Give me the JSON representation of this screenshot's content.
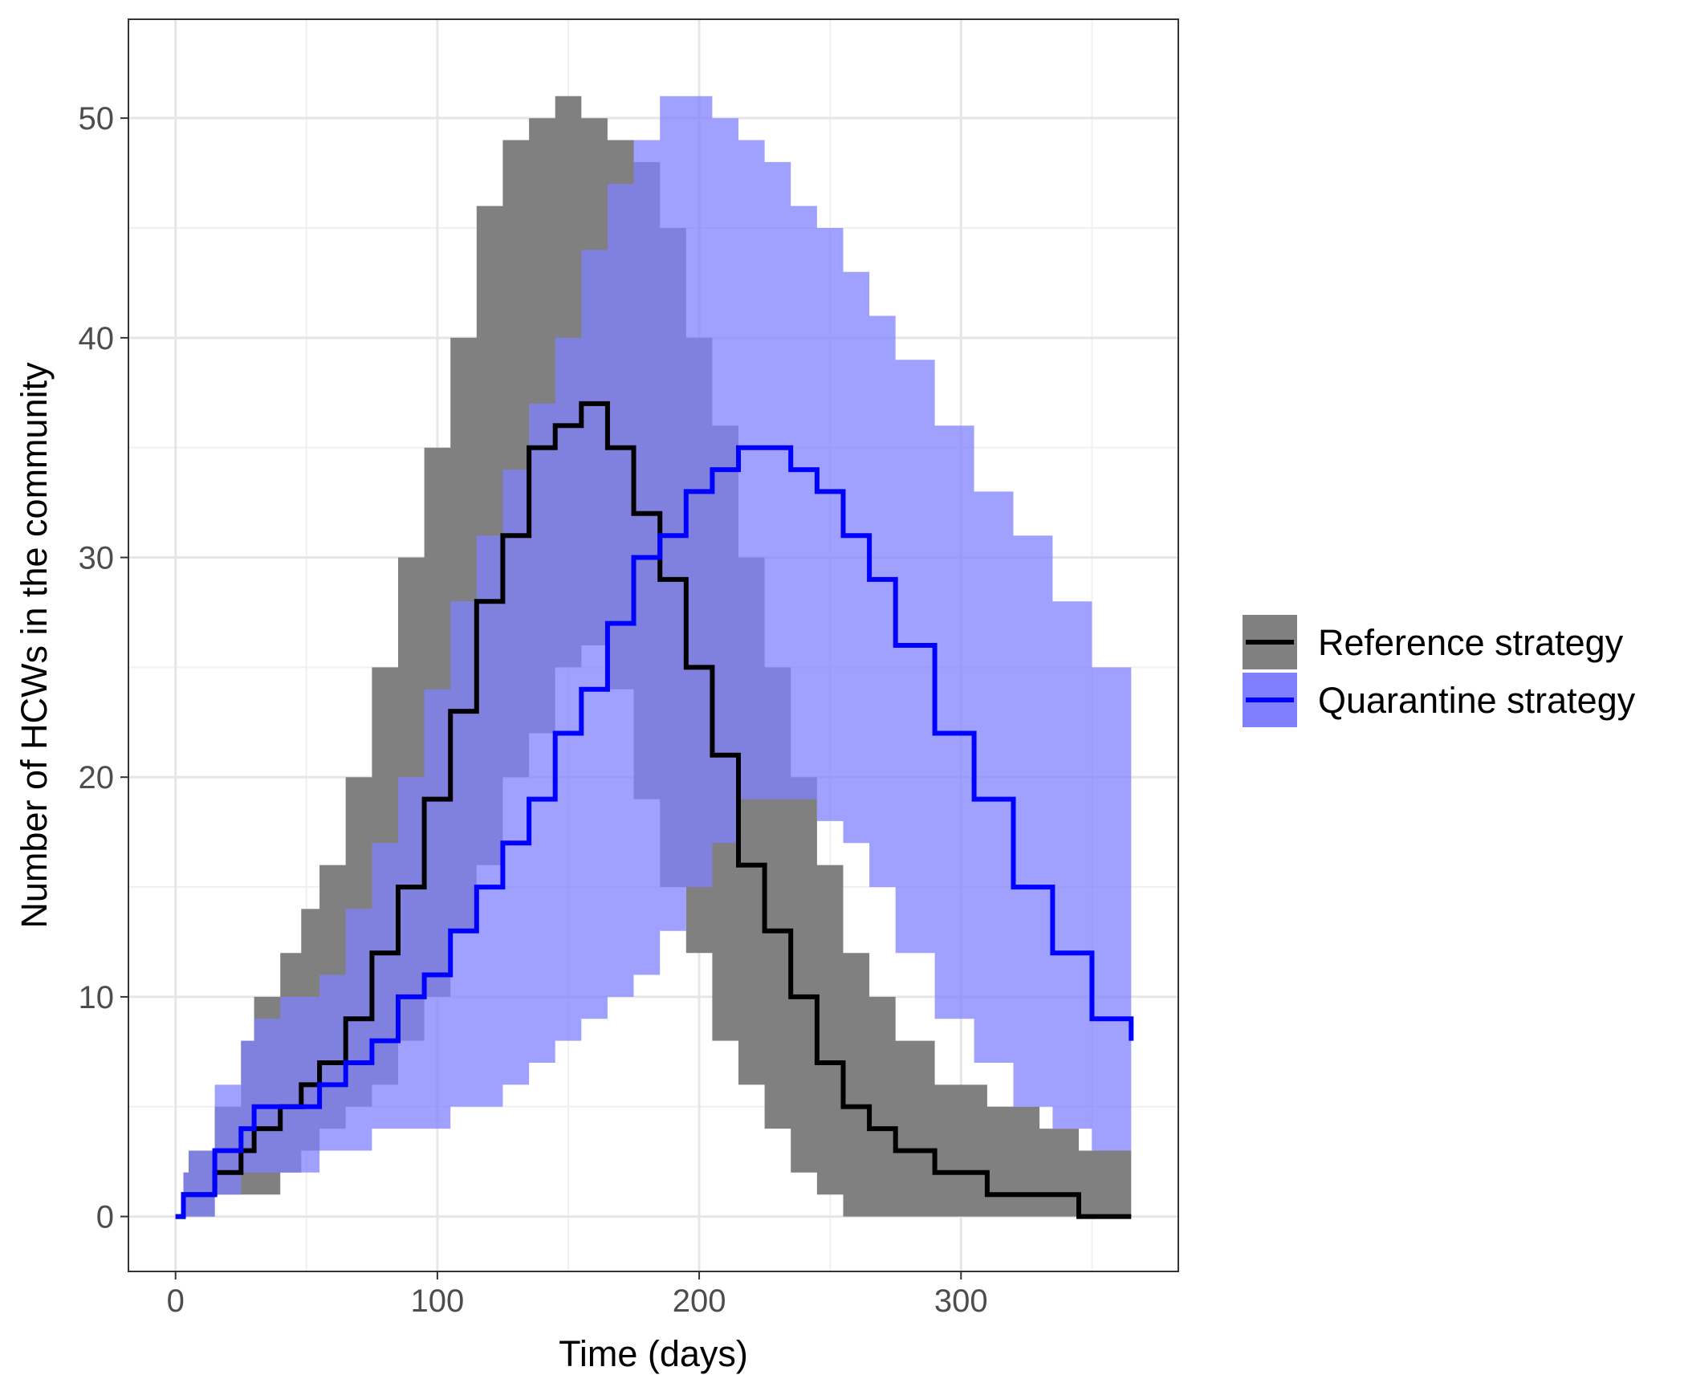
{
  "chart_data": {
    "type": "line",
    "xlabel": "Time (days)",
    "ylabel": "Number of HCWs in the community",
    "xlim": [
      -18,
      383
    ],
    "ylim": [
      -2.5,
      54.5
    ],
    "x_ticks": [
      0,
      100,
      200,
      300
    ],
    "y_ticks": [
      0,
      10,
      20,
      30,
      40,
      50
    ],
    "grid": true,
    "legend_position": "right",
    "series": [
      {
        "name": "Reference strategy",
        "line_color": "#000000",
        "band_color": "#808080",
        "x": [
          0,
          3,
          5,
          15,
          25,
          30,
          40,
          48,
          55,
          65,
          75,
          85,
          95,
          105,
          115,
          125,
          135,
          145,
          155,
          165,
          175,
          185,
          195,
          205,
          215,
          225,
          235,
          245,
          255,
          265,
          275,
          290,
          310,
          330,
          345,
          365
        ],
        "y": [
          0,
          1,
          1,
          2,
          3,
          4,
          5,
          6,
          7,
          9,
          12,
          15,
          19,
          23,
          28,
          31,
          35,
          36,
          37,
          35,
          32,
          29,
          25,
          21,
          16,
          13,
          10,
          7,
          5,
          4,
          3,
          2,
          1,
          1,
          0,
          0
        ],
        "lower": [
          0,
          0,
          0,
          1,
          1,
          1,
          2,
          3,
          4,
          5,
          6,
          8,
          10,
          13,
          16,
          20,
          22,
          25,
          26,
          24,
          19,
          15,
          12,
          8,
          6,
          4,
          2,
          1,
          0,
          0,
          0,
          0,
          0,
          0,
          0,
          0
        ],
        "upper": [
          0,
          2,
          3,
          5,
          8,
          10,
          12,
          14,
          16,
          20,
          25,
          30,
          35,
          40,
          46,
          49,
          50,
          51,
          50,
          49,
          48,
          45,
          40,
          36,
          30,
          25,
          20,
          16,
          12,
          10,
          8,
          6,
          5,
          4,
          3,
          3
        ]
      },
      {
        "name": "Quarantine strategy",
        "line_color": "#0000ff",
        "band_color": "#8080ff",
        "x": [
          0,
          3,
          5,
          15,
          25,
          30,
          40,
          55,
          65,
          75,
          85,
          95,
          105,
          115,
          125,
          135,
          145,
          155,
          165,
          175,
          185,
          195,
          205,
          215,
          225,
          235,
          245,
          255,
          265,
          275,
          290,
          305,
          320,
          335,
          350,
          365
        ],
        "y": [
          0,
          1,
          1,
          3,
          4,
          5,
          5,
          6,
          7,
          8,
          10,
          11,
          13,
          15,
          17,
          19,
          22,
          24,
          27,
          30,
          31,
          33,
          34,
          35,
          35,
          34,
          33,
          31,
          29,
          26,
          22,
          19,
          15,
          12,
          9,
          8
        ],
        "lower": [
          0,
          0,
          0,
          1,
          2,
          2,
          2,
          3,
          3,
          4,
          4,
          4,
          5,
          5,
          6,
          7,
          8,
          9,
          10,
          11,
          13,
          15,
          17,
          19,
          19,
          19,
          18,
          17,
          15,
          12,
          9,
          7,
          5,
          4,
          3,
          3
        ],
        "upper": [
          0,
          2,
          3,
          6,
          8,
          9,
          10,
          11,
          14,
          17,
          20,
          24,
          28,
          31,
          34,
          37,
          40,
          44,
          47,
          49,
          51,
          51,
          50,
          49,
          48,
          46,
          45,
          43,
          41,
          39,
          36,
          33,
          31,
          28,
          25,
          22
        ]
      }
    ]
  }
}
